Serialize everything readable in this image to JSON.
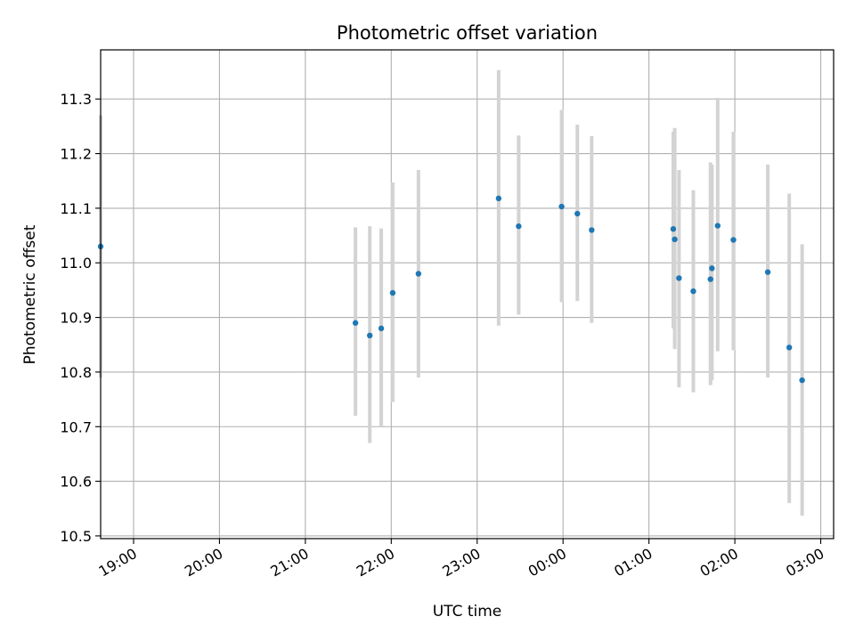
{
  "chart_data": {
    "type": "scatter",
    "title": "Photometric offset variation",
    "xlabel": "UTC time",
    "ylabel": "Photometric offset",
    "grid": true,
    "legend": "none",
    "xlim": [
      "18:37",
      "03:09"
    ],
    "ylim": [
      10.495,
      11.39
    ],
    "x_ticks": [
      "19:00",
      "20:00",
      "21:00",
      "22:00",
      "23:00",
      "00:00",
      "01:00",
      "02:00",
      "03:00"
    ],
    "y_ticks": [
      "10.5",
      "10.6",
      "10.7",
      "10.8",
      "10.9",
      "11.0",
      "11.1",
      "11.2",
      "11.3"
    ],
    "colors": {
      "point": "#1f77b4",
      "errorbar": "#d3d3d3",
      "grid": "#b0b0b0"
    },
    "series": [
      {
        "points": [
          {
            "t": "18:37",
            "y": 11.03,
            "lo": 10.79,
            "hi": 11.27
          },
          {
            "t": "21:35",
            "y": 10.89,
            "lo": 10.72,
            "hi": 11.065
          },
          {
            "t": "21:45",
            "y": 10.867,
            "lo": 10.67,
            "hi": 11.067
          },
          {
            "t": "21:53",
            "y": 10.88,
            "lo": 10.7,
            "hi": 11.063
          },
          {
            "t": "22:01",
            "y": 10.945,
            "lo": 10.745,
            "hi": 11.147
          },
          {
            "t": "22:19",
            "y": 10.98,
            "lo": 10.79,
            "hi": 11.17
          },
          {
            "t": "23:15",
            "y": 11.118,
            "lo": 10.885,
            "hi": 11.353
          },
          {
            "t": "23:29",
            "y": 11.067,
            "lo": 10.905,
            "hi": 11.233
          },
          {
            "t": "23:59",
            "y": 11.103,
            "lo": 10.928,
            "hi": 11.28
          },
          {
            "t": "00:10",
            "y": 11.09,
            "lo": 10.93,
            "hi": 11.253
          },
          {
            "t": "00:20",
            "y": 11.06,
            "lo": 10.89,
            "hi": 11.232
          },
          {
            "t": "01:17",
            "y": 11.062,
            "lo": 10.88,
            "hi": 11.24
          },
          {
            "t": "01:18",
            "y": 11.043,
            "lo": 10.842,
            "hi": 11.247
          },
          {
            "t": "01:21",
            "y": 10.972,
            "lo": 10.772,
            "hi": 11.17
          },
          {
            "t": "01:31",
            "y": 10.948,
            "lo": 10.763,
            "hi": 11.133
          },
          {
            "t": "01:43",
            "y": 10.97,
            "lo": 10.776,
            "hi": 11.184
          },
          {
            "t": "01:44",
            "y": 10.99,
            "lo": 10.785,
            "hi": 11.18
          },
          {
            "t": "01:48",
            "y": 11.068,
            "lo": 10.838,
            "hi": 11.302
          },
          {
            "t": "01:59",
            "y": 11.042,
            "lo": 10.84,
            "hi": 11.24
          },
          {
            "t": "02:23",
            "y": 10.983,
            "lo": 10.79,
            "hi": 11.18
          },
          {
            "t": "02:38",
            "y": 10.845,
            "lo": 10.56,
            "hi": 11.127
          },
          {
            "t": "02:47",
            "y": 10.785,
            "lo": 10.537,
            "hi": 11.034
          }
        ]
      }
    ]
  }
}
